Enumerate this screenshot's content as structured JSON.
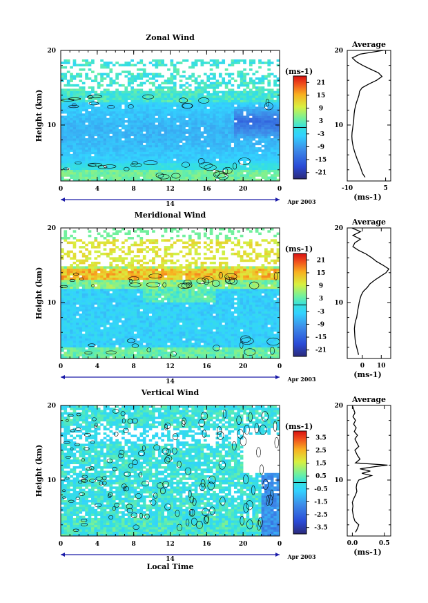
{
  "chart_data": [
    {
      "type": "heatmap",
      "title": "Zonal Wind",
      "ylabel": "Height (km)",
      "y_ticks": [
        "20",
        "10"
      ],
      "y_tick_values": [
        20,
        10
      ],
      "ylim": [
        2.5,
        20
      ],
      "x_ticks": [
        "0",
        "4",
        "8",
        "12",
        "16",
        "20",
        "0"
      ],
      "x_tick_values": [
        0,
        4,
        8,
        12,
        16,
        20,
        24
      ],
      "xlim": [
        0,
        24
      ],
      "day_label": "14",
      "date_label": "Apr 2003",
      "colorbar": {
        "unit": "(ms-1)",
        "ticks": [
          "21",
          "15",
          "9",
          "3",
          "-3",
          "-9",
          "-15",
          "-21"
        ],
        "values": [
          21,
          15,
          9,
          3,
          -3,
          -9,
          -15,
          -21
        ],
        "range": [
          -24,
          24
        ]
      },
      "profile": {
        "title": "Average",
        "y_ticks": [
          "20",
          "10"
        ],
        "x_ticks": [
          "-10",
          "5"
        ],
        "x_tick_values": [
          -10,
          5
        ],
        "xlim": [
          -10,
          7
        ],
        "xlabel": "(ms-1)",
        "points": [
          [
            -3,
            3
          ],
          [
            -4,
            3.5
          ],
          [
            -4.5,
            4
          ],
          [
            -5,
            4.5
          ],
          [
            -5.6,
            5
          ],
          [
            -6.2,
            5.5
          ],
          [
            -6.7,
            6
          ],
          [
            -7.2,
            6.5
          ],
          [
            -7.6,
            7
          ],
          [
            -7.9,
            7.5
          ],
          [
            -8.1,
            8
          ],
          [
            -8.2,
            8.5
          ],
          [
            -8.1,
            9
          ],
          [
            -7.9,
            9.5
          ],
          [
            -7.7,
            10
          ],
          [
            -7.5,
            10.5
          ],
          [
            -7.4,
            11
          ],
          [
            -7.3,
            11.5
          ],
          [
            -7.1,
            12
          ],
          [
            -6.8,
            12.5
          ],
          [
            -6.4,
            13
          ],
          [
            -5.9,
            13.5
          ],
          [
            -5.4,
            14
          ],
          [
            -5.2,
            14.5
          ],
          [
            -4.2,
            15
          ],
          [
            -1.5,
            15.5
          ],
          [
            1.5,
            16
          ],
          [
            3.6,
            16.5
          ],
          [
            2.2,
            17
          ],
          [
            -1,
            17.5
          ],
          [
            -4,
            18
          ],
          [
            -6.5,
            18.5
          ],
          [
            -8,
            19
          ],
          [
            -5,
            19.5
          ],
          [
            4,
            20
          ]
        ]
      }
    },
    {
      "type": "heatmap",
      "title": "Meridional Wind",
      "ylabel": "Height (km)",
      "y_ticks": [
        "20",
        "10"
      ],
      "y_tick_values": [
        20,
        10
      ],
      "ylim": [
        2.5,
        20
      ],
      "x_ticks": [
        "0",
        "4",
        "8",
        "12",
        "16",
        "20",
        "0"
      ],
      "x_tick_values": [
        0,
        4,
        8,
        12,
        16,
        20,
        24
      ],
      "xlim": [
        0,
        24
      ],
      "day_label": "14",
      "date_label": "Apr 2003",
      "colorbar": {
        "unit": "(ms-1)",
        "ticks": [
          "21",
          "15",
          "9",
          "3",
          "-3",
          "-9",
          "-15",
          "-21"
        ],
        "values": [
          21,
          15,
          9,
          3,
          -3,
          -9,
          -15,
          -21
        ],
        "range": [
          -24,
          24
        ]
      },
      "profile": {
        "title": "Average",
        "y_ticks": [
          "20",
          "10"
        ],
        "x_ticks": [
          "0",
          "10"
        ],
        "x_tick_values": [
          0,
          10
        ],
        "xlim": [
          -8,
          15
        ],
        "xlabel": "(ms-1)",
        "points": [
          [
            -2,
            3
          ],
          [
            -2.5,
            3.5
          ],
          [
            -3,
            4
          ],
          [
            -3.5,
            4.5
          ],
          [
            -3.8,
            5
          ],
          [
            -4,
            5.5
          ],
          [
            -4.1,
            6
          ],
          [
            -4.2,
            6.5
          ],
          [
            -4,
            7
          ],
          [
            -3.7,
            7.5
          ],
          [
            -3,
            8
          ],
          [
            -2.7,
            8.5
          ],
          [
            -2.4,
            9
          ],
          [
            -2,
            9.5
          ],
          [
            -1.7,
            10
          ],
          [
            -1.2,
            10.5
          ],
          [
            -0.6,
            11
          ],
          [
            0.5,
            11.5
          ],
          [
            2.5,
            12
          ],
          [
            4,
            12.5
          ],
          [
            6.5,
            13
          ],
          [
            9.5,
            13.5
          ],
          [
            12.5,
            14
          ],
          [
            14,
            14.5
          ],
          [
            11,
            15
          ],
          [
            7.5,
            15.5
          ],
          [
            5,
            16
          ],
          [
            2,
            16.5
          ],
          [
            -2,
            17
          ],
          [
            -5,
            17.5
          ],
          [
            -4,
            18
          ],
          [
            -1,
            18.5
          ],
          [
            -5,
            19
          ],
          [
            -1,
            19.5
          ],
          [
            -5.5,
            20
          ]
        ]
      }
    },
    {
      "type": "heatmap",
      "title": "Vertical Wind",
      "ylabel": "Height (km)",
      "xlabel": "Local Time",
      "y_ticks": [
        "20",
        "10"
      ],
      "y_tick_values": [
        20,
        10
      ],
      "ylim": [
        2.5,
        20
      ],
      "x_ticks": [
        "0",
        "4",
        "8",
        "12",
        "16",
        "20",
        "0"
      ],
      "x_tick_values": [
        0,
        4,
        8,
        12,
        16,
        20,
        24
      ],
      "xlim": [
        0,
        24
      ],
      "day_label": "14",
      "date_label": "Apr 2003",
      "colorbar": {
        "unit": "(ms-1)",
        "ticks": [
          "3.5",
          "2.5",
          "1.5",
          "0.5",
          "-0.5",
          "-1.5",
          "-2.5",
          "-3.5"
        ],
        "values": [
          3.5,
          2.5,
          1.5,
          0.5,
          -0.5,
          -1.5,
          -2.5,
          -3.5
        ],
        "range": [
          -4,
          4
        ]
      },
      "profile": {
        "title": "Average",
        "y_ticks": [
          "20",
          "10"
        ],
        "x_ticks": [
          "0.0",
          "0.5"
        ],
        "x_tick_values": [
          0,
          0.5
        ],
        "xlim": [
          -0.08,
          0.6
        ],
        "xlabel": "(ms-1)",
        "points": [
          [
            0.05,
            3
          ],
          [
            0.08,
            3.5
          ],
          [
            0.1,
            4
          ],
          [
            0.04,
            4.5
          ],
          [
            0.02,
            5
          ],
          [
            0.01,
            5.5
          ],
          [
            0,
            6
          ],
          [
            0.01,
            6.5
          ],
          [
            0,
            7
          ],
          [
            0.02,
            7.5
          ],
          [
            0.05,
            8
          ],
          [
            0.07,
            8.5
          ],
          [
            0.06,
            9
          ],
          [
            0.07,
            9.5
          ],
          [
            0.1,
            10
          ],
          [
            0.2,
            10.3
          ],
          [
            0.3,
            10.6
          ],
          [
            0.15,
            10.9
          ],
          [
            0.28,
            11.2
          ],
          [
            0.12,
            11.5
          ],
          [
            0.35,
            11.8
          ],
          [
            0.55,
            12
          ],
          [
            0.05,
            12.3
          ],
          [
            0.12,
            12.8
          ],
          [
            0.08,
            13.3
          ],
          [
            0.04,
            14
          ],
          [
            0.1,
            14.5
          ],
          [
            0.07,
            15
          ],
          [
            0.04,
            15.5
          ],
          [
            0.08,
            16
          ],
          [
            0.03,
            16.5
          ],
          [
            0.06,
            17
          ],
          [
            0.02,
            17.5
          ],
          [
            0.05,
            18
          ],
          [
            0.01,
            18.5
          ],
          [
            0.04,
            19
          ],
          [
            0.02,
            19.5
          ],
          [
            0.0,
            20
          ]
        ]
      }
    }
  ]
}
